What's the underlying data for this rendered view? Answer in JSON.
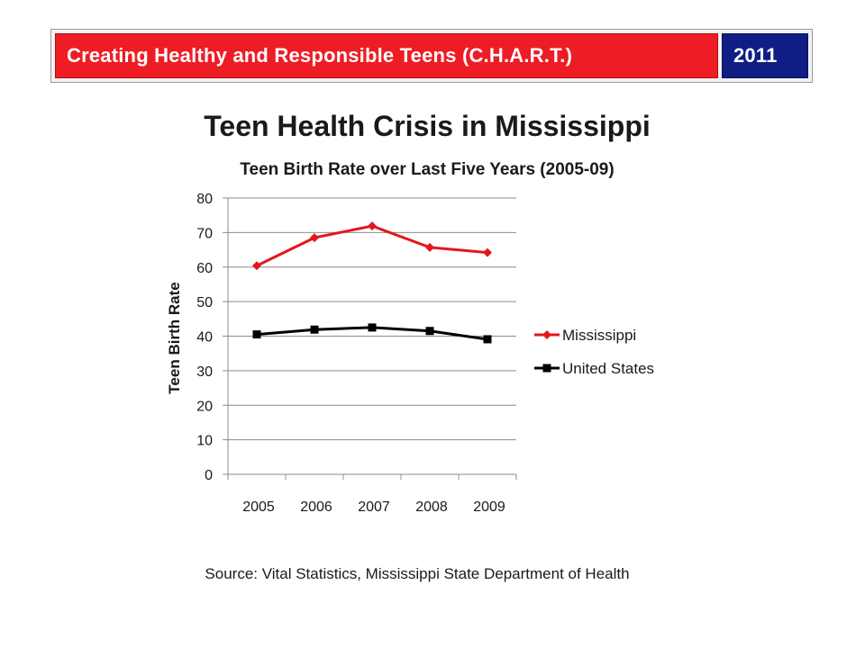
{
  "header": {
    "banner_title": "Creating Healthy and Responsible Teens (C.H.A.R.T.)",
    "banner_year": "2011",
    "colors": {
      "banner_red": "#ee1c25",
      "banner_blue": "#0f1d85"
    }
  },
  "slide": {
    "title": "Teen Health Crisis in Mississippi",
    "source": "Source: Vital Statistics, Mississippi State Department of Health"
  },
  "chart_data": {
    "type": "line",
    "title": "Teen Birth Rate over Last Five Years  (2005-09)",
    "xlabel": "",
    "ylabel": "Teen Birth Rate",
    "categories": [
      "2005",
      "2006",
      "2007",
      "2008",
      "2009"
    ],
    "ylim": [
      0,
      80
    ],
    "yticks": [
      0,
      10,
      20,
      30,
      40,
      50,
      60,
      70,
      80
    ],
    "grid": true,
    "legend_position": "right",
    "series": [
      {
        "name": "Mississippi",
        "values": [
          60.4,
          68.5,
          71.9,
          65.7,
          64.2
        ],
        "color": "#e3161d",
        "marker": "diamond"
      },
      {
        "name": "United States",
        "values": [
          40.5,
          41.9,
          42.5,
          41.5,
          39.1
        ],
        "color": "#000000",
        "marker": "square"
      }
    ]
  }
}
